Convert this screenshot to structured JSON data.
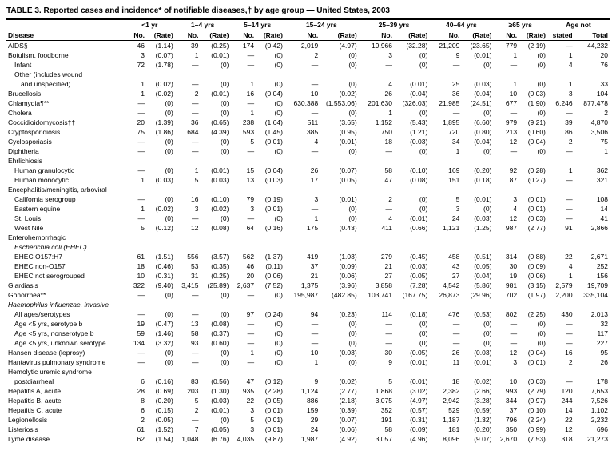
{
  "title": "TABLE 3. Reported cases and incidence* of notifiable diseases,† by age group — United States, 2003",
  "age_groups": [
    "<1 yr",
    "1–4 yrs",
    "5–14 yrs",
    "15–24 yrs",
    "25–39 yrs",
    "40–64 yrs",
    "≥65 yrs",
    "Age not"
  ],
  "sub_headers": [
    "No.",
    "(Rate)"
  ],
  "stated_total": [
    "stated",
    "Total"
  ],
  "disease_label": "Disease",
  "rows": [
    {
      "name": "AIDS§",
      "indent": 0,
      "cells": [
        "46",
        "(1.14)",
        "39",
        "(0.25)",
        "174",
        "(0.42)",
        "2,019",
        "(4.97)",
        "19,966",
        "(32.28)",
        "21,209",
        "(23.65)",
        "779",
        "(2.19)",
        "—",
        "44,232"
      ]
    },
    {
      "name": "Botulism, foodborne",
      "indent": 0,
      "cells": [
        "3",
        "(0.07)",
        "1",
        "(0.01)",
        "—",
        "(0)",
        "2",
        "(0)",
        "3",
        "(0)",
        "9",
        "(0.01)",
        "1",
        "(0)",
        "1",
        "20"
      ]
    },
    {
      "name": "Infant",
      "indent": 1,
      "cells": [
        "72",
        "(1.78)",
        "—",
        "(0)",
        "—",
        "(0)",
        "—",
        "(0)",
        "—",
        "(0)",
        "—",
        "(0)",
        "—",
        "(0)",
        "4",
        "76"
      ]
    },
    {
      "name": "Other (includes wound",
      "indent": 1,
      "cells": [
        "",
        "",
        "",
        "",
        "",
        "",
        "",
        "",
        "",
        "",
        "",
        "",
        "",
        "",
        "",
        ""
      ]
    },
    {
      "name": "and unspecified)",
      "indent": 2,
      "cells": [
        "1",
        "(0.02)",
        "—",
        "(0)",
        "1",
        "(0)",
        "—",
        "(0)",
        "4",
        "(0.01)",
        "25",
        "(0.03)",
        "1",
        "(0)",
        "1",
        "33"
      ]
    },
    {
      "name": "Brucellosis",
      "indent": 0,
      "cells": [
        "1",
        "(0.02)",
        "2",
        "(0.01)",
        "16",
        "(0.04)",
        "10",
        "(0.02)",
        "26",
        "(0.04)",
        "36",
        "(0.04)",
        "10",
        "(0.03)",
        "3",
        "104"
      ]
    },
    {
      "name": "Chlamydia¶**",
      "indent": 0,
      "cells": [
        "—",
        "(0)",
        "—",
        "(0)",
        "—",
        "(0)",
        "630,388",
        "(1,553.06)",
        "201,630",
        "(326.03)",
        "21,985",
        "(24.51)",
        "677",
        "(1.90)",
        "6,246",
        "877,478"
      ]
    },
    {
      "name": "Cholera",
      "indent": 0,
      "cells": [
        "—",
        "(0)",
        "—",
        "(0)",
        "1",
        "(0)",
        "—",
        "(0)",
        "1",
        "(0)",
        "—",
        "(0)",
        "—",
        "(0)",
        "—",
        "2"
      ]
    },
    {
      "name": "Coccidioidomycosis††",
      "indent": 0,
      "cells": [
        "20",
        "(1.39)",
        "36",
        "(0.65)",
        "238",
        "(1.64)",
        "511",
        "(3.65)",
        "1,152",
        "(5.43)",
        "1,895",
        "(6.60)",
        "979",
        "(9.21)",
        "39",
        "4,870"
      ]
    },
    {
      "name": "Cryptosporidiosis",
      "indent": 0,
      "cells": [
        "75",
        "(1.86)",
        "684",
        "(4.39)",
        "593",
        "(1.45)",
        "385",
        "(0.95)",
        "750",
        "(1.21)",
        "720",
        "(0.80)",
        "213",
        "(0.60)",
        "86",
        "3,506"
      ]
    },
    {
      "name": "Cyclosporiasis",
      "indent": 0,
      "cells": [
        "—",
        "(0)",
        "—",
        "(0)",
        "5",
        "(0.01)",
        "4",
        "(0.01)",
        "18",
        "(0.03)",
        "34",
        "(0.04)",
        "12",
        "(0.04)",
        "2",
        "75"
      ]
    },
    {
      "name": "Diphtheria",
      "indent": 0,
      "cells": [
        "—",
        "(0)",
        "—",
        "(0)",
        "—",
        "(0)",
        "—",
        "(0)",
        "—",
        "(0)",
        "1",
        "(0)",
        "—",
        "(0)",
        "—",
        "1"
      ]
    },
    {
      "name": "Ehrlichiosis",
      "indent": 0,
      "cells": [
        "",
        "",
        "",
        "",
        "",
        "",
        "",
        "",
        "",
        "",
        "",
        "",
        "",
        "",
        "",
        ""
      ]
    },
    {
      "name": "Human granulocytic",
      "indent": 1,
      "cells": [
        "—",
        "(0)",
        "1",
        "(0.01)",
        "15",
        "(0.04)",
        "26",
        "(0.07)",
        "58",
        "(0.10)",
        "169",
        "(0.20)",
        "92",
        "(0.28)",
        "1",
        "362"
      ]
    },
    {
      "name": "Human monocytic",
      "indent": 1,
      "cells": [
        "1",
        "(0.03)",
        "5",
        "(0.03)",
        "13",
        "(0.03)",
        "17",
        "(0.05)",
        "47",
        "(0.08)",
        "151",
        "(0.18)",
        "87",
        "(0.27)",
        "—",
        "321"
      ]
    },
    {
      "name": "Encephalitis/meningitis, arboviral",
      "indent": 0,
      "cells": [
        "",
        "",
        "",
        "",
        "",
        "",
        "",
        "",
        "",
        "",
        "",
        "",
        "",
        "",
        "",
        ""
      ]
    },
    {
      "name": "California serogroup",
      "indent": 1,
      "cells": [
        "—",
        "(0)",
        "16",
        "(0.10)",
        "79",
        "(0.19)",
        "3",
        "(0.01)",
        "2",
        "(0)",
        "5",
        "(0.01)",
        "3",
        "(0.01)",
        "—",
        "108"
      ]
    },
    {
      "name": "Eastern equine",
      "indent": 1,
      "cells": [
        "1",
        "(0.02)",
        "3",
        "(0.02)",
        "3",
        "(0.01)",
        "—",
        "(0)",
        "—",
        "(0)",
        "3",
        "(0)",
        "4",
        "(0.01)",
        "—",
        "14"
      ]
    },
    {
      "name": "St. Louis",
      "indent": 1,
      "cells": [
        "—",
        "(0)",
        "—",
        "(0)",
        "—",
        "(0)",
        "1",
        "(0)",
        "4",
        "(0.01)",
        "24",
        "(0.03)",
        "12",
        "(0.03)",
        "—",
        "41"
      ]
    },
    {
      "name": "West Nile",
      "indent": 1,
      "cells": [
        "5",
        "(0.12)",
        "12",
        "(0.08)",
        "64",
        "(0.16)",
        "175",
        "(0.43)",
        "411",
        "(0.66)",
        "1,121",
        "(1.25)",
        "987",
        "(2.77)",
        "91",
        "2,866"
      ]
    },
    {
      "name": "Enterohemorrhagic",
      "indent": 0,
      "cells": [
        "",
        "",
        "",
        "",
        "",
        "",
        "",
        "",
        "",
        "",
        "",
        "",
        "",
        "",
        "",
        ""
      ]
    },
    {
      "name": "Escherichia coli (EHEC)",
      "indent": 1,
      "cells": [
        "",
        "",
        "",
        "",
        "",
        "",
        "",
        "",
        "",
        "",
        "",
        "",
        "",
        "",
        "",
        ""
      ],
      "italic": true
    },
    {
      "name": "EHEC O157:H7",
      "indent": 1,
      "cells": [
        "61",
        "(1.51)",
        "556",
        "(3.57)",
        "562",
        "(1.37)",
        "419",
        "(1.03)",
        "279",
        "(0.45)",
        "458",
        "(0.51)",
        "314",
        "(0.88)",
        "22",
        "2,671"
      ]
    },
    {
      "name": "EHEC non-O157",
      "indent": 1,
      "cells": [
        "18",
        "(0.46)",
        "53",
        "(0.35)",
        "46",
        "(0.11)",
        "37",
        "(0.09)",
        "21",
        "(0.03)",
        "43",
        "(0.05)",
        "30",
        "(0.09)",
        "4",
        "252"
      ]
    },
    {
      "name": "EHEC not serogrouped",
      "indent": 1,
      "cells": [
        "10",
        "(0.31)",
        "31",
        "(0.25)",
        "20",
        "(0.06)",
        "21",
        "(0.06)",
        "27",
        "(0.05)",
        "27",
        "(0.04)",
        "19",
        "(0.06)",
        "1",
        "156"
      ]
    },
    {
      "name": "Giardiasis",
      "indent": 0,
      "cells": [
        "322",
        "(9.40)",
        "3,415",
        "(25.89)",
        "2,637",
        "(7.52)",
        "1,375",
        "(3.96)",
        "3,858",
        "(7.28)",
        "4,542",
        "(5.86)",
        "981",
        "(3.15)",
        "2,579",
        "19,709"
      ]
    },
    {
      "name": "Gonorrhea**",
      "indent": 0,
      "cells": [
        "—",
        "(0)",
        "—",
        "(0)",
        "—",
        "(0)",
        "195,987",
        "(482.85)",
        "103,741",
        "(167.75)",
        "26,873",
        "(29.96)",
        "702",
        "(1.97)",
        "2,200",
        "335,104"
      ]
    },
    {
      "name": "Haemophilus influenzae, invasive",
      "indent": 0,
      "cells": [
        "",
        "",
        "",
        "",
        "",
        "",
        "",
        "",
        "",
        "",
        "",
        "",
        "",
        "",
        "",
        ""
      ],
      "italic": true
    },
    {
      "name": "All ages/serotypes",
      "indent": 1,
      "cells": [
        "—",
        "(0)",
        "—",
        "(0)",
        "97",
        "(0.24)",
        "94",
        "(0.23)",
        "114",
        "(0.18)",
        "476",
        "(0.53)",
        "802",
        "(2.25)",
        "430",
        "2,013"
      ]
    },
    {
      "name": "Age <5 yrs, serotype b",
      "indent": 1,
      "cells": [
        "19",
        "(0.47)",
        "13",
        "(0.08)",
        "—",
        "(0)",
        "—",
        "(0)",
        "—",
        "(0)",
        "—",
        "(0)",
        "—",
        "(0)",
        "—",
        "32"
      ]
    },
    {
      "name": "Age <5 yrs, nonserotype b",
      "indent": 1,
      "cells": [
        "59",
        "(1.46)",
        "58",
        "(0.37)",
        "—",
        "(0)",
        "—",
        "(0)",
        "—",
        "(0)",
        "—",
        "(0)",
        "—",
        "(0)",
        "—",
        "117"
      ]
    },
    {
      "name": "Age <5 yrs, unknown serotype",
      "indent": 1,
      "cells": [
        "134",
        "(3.32)",
        "93",
        "(0.60)",
        "—",
        "(0)",
        "—",
        "(0)",
        "—",
        "(0)",
        "—",
        "(0)",
        "—",
        "(0)",
        "—",
        "227"
      ]
    },
    {
      "name": "Hansen disease (leprosy)",
      "indent": 0,
      "cells": [
        "—",
        "(0)",
        "—",
        "(0)",
        "1",
        "(0)",
        "10",
        "(0.03)",
        "30",
        "(0.05)",
        "26",
        "(0.03)",
        "12",
        "(0.04)",
        "16",
        "95"
      ]
    },
    {
      "name": "Hantavirus pulmonary syndrome",
      "indent": 0,
      "cells": [
        "—",
        "(0)",
        "—",
        "(0)",
        "—",
        "(0)",
        "1",
        "(0)",
        "9",
        "(0.01)",
        "11",
        "(0.01)",
        "3",
        "(0.01)",
        "2",
        "26"
      ]
    },
    {
      "name": "Hemolytic uremic syndrome",
      "indent": 0,
      "cells": [
        "",
        "",
        "",
        "",
        "",
        "",
        "",
        "",
        "",
        "",
        "",
        "",
        "",
        "",
        "",
        ""
      ]
    },
    {
      "name": "postdiarrheal",
      "indent": 1,
      "cells": [
        "6",
        "(0.16)",
        "83",
        "(0.56)",
        "47",
        "(0.12)",
        "9",
        "(0.02)",
        "5",
        "(0.01)",
        "18",
        "(0.02)",
        "10",
        "(0.03)",
        "—",
        "178"
      ]
    },
    {
      "name": "Hepatitis A, acute",
      "indent": 0,
      "cells": [
        "28",
        "(0.69)",
        "203",
        "(1.30)",
        "935",
        "(2.28)",
        "1,124",
        "(2.77)",
        "1,868",
        "(3.02)",
        "2,382",
        "(2.66)",
        "993",
        "(2.79)",
        "120",
        "7,653"
      ]
    },
    {
      "name": "Hepatitis B, acute",
      "indent": 0,
      "cells": [
        "8",
        "(0.20)",
        "5",
        "(0.03)",
        "22",
        "(0.05)",
        "886",
        "(2.18)",
        "3,075",
        "(4.97)",
        "2,942",
        "(3.28)",
        "344",
        "(0.97)",
        "244",
        "7,526"
      ]
    },
    {
      "name": "Hepatitis C, acute",
      "indent": 0,
      "cells": [
        "6",
        "(0.15)",
        "2",
        "(0.01)",
        "3",
        "(0.01)",
        "159",
        "(0.39)",
        "352",
        "(0.57)",
        "529",
        "(0.59)",
        "37",
        "(0.10)",
        "14",
        "1,102"
      ]
    },
    {
      "name": "Legionellosis",
      "indent": 0,
      "cells": [
        "2",
        "(0.05)",
        "—",
        "(0)",
        "5",
        "(0.01)",
        "29",
        "(0.07)",
        "191",
        "(0.31)",
        "1,187",
        "(1.32)",
        "796",
        "(2.24)",
        "22",
        "2,232"
      ]
    },
    {
      "name": "Listeriosis",
      "indent": 0,
      "cells": [
        "61",
        "(1.52)",
        "7",
        "(0.05)",
        "3",
        "(0.01)",
        "24",
        "(0.06)",
        "58",
        "(0.09)",
        "181",
        "(0.20)",
        "350",
        "(0.99)",
        "12",
        "696"
      ]
    },
    {
      "name": "Lyme disease",
      "indent": 0,
      "cells": [
        "62",
        "(1.54)",
        "1,048",
        "(6.76)",
        "4,035",
        "(9.87)",
        "1,987",
        "(4.92)",
        "3,057",
        "(4.96)",
        "8,096",
        "(9.07)",
        "2,670",
        "(7.53)",
        "318",
        "21,273"
      ]
    }
  ]
}
